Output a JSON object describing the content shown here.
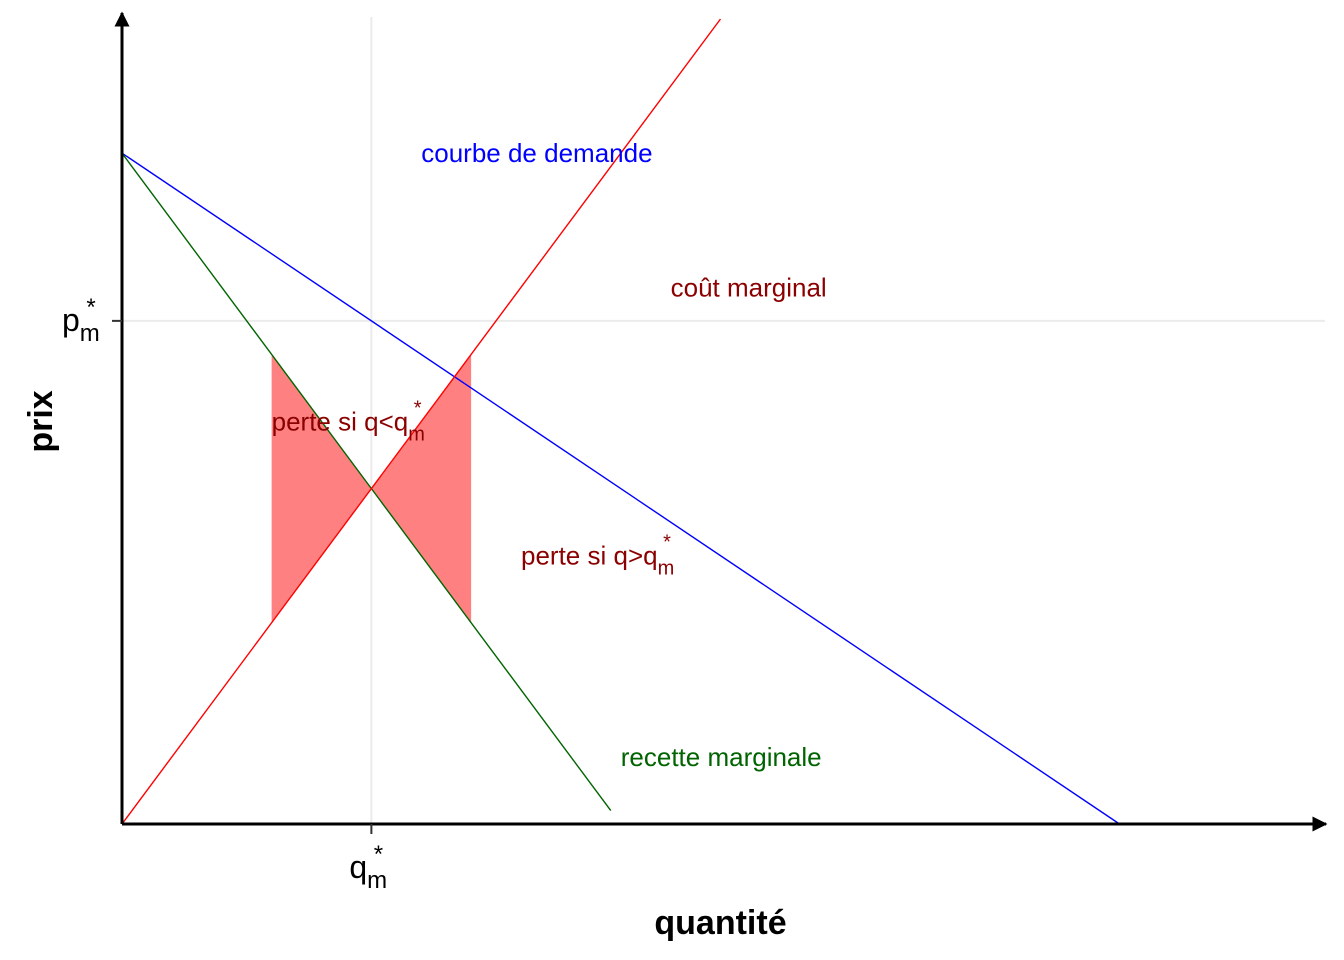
{
  "chart_data": {
    "type": "line",
    "xlabel": "quantité",
    "ylabel": "prix",
    "xlim": [
      0,
      1.2
    ],
    "ylim": [
      0,
      1.2
    ],
    "grid": true,
    "x_ticks": [
      {
        "value": 0.25,
        "base": "q",
        "sub": "m",
        "sup": "*"
      }
    ],
    "y_ticks": [
      {
        "value": 0.75,
        "base": "p",
        "sub": "m",
        "sup": "*"
      }
    ],
    "series": [
      {
        "name": "courbe de demande",
        "color": "#0000ff",
        "x": [
          0,
          1.0
        ],
        "y": [
          1.0,
          0
        ]
      },
      {
        "name": "recette marginale",
        "color": "#006400",
        "x": [
          0,
          0.49
        ],
        "y": [
          1.0,
          0.02
        ]
      },
      {
        "name": "coût marginal",
        "color": "#ff0000",
        "x": [
          0,
          0.6
        ],
        "y": [
          0,
          1.2
        ]
      }
    ],
    "shaded_regions": [
      {
        "color": "#ff8080",
        "x": [
          0.15,
          0.25
        ],
        "lower": "coût marginal",
        "upper": "recette marginale"
      },
      {
        "color": "#ff8080",
        "x": [
          0.25,
          0.35
        ],
        "lower": "recette marginale",
        "upper": "coût marginal"
      }
    ],
    "annotations": [
      {
        "id": "demand",
        "text": "courbe de demande",
        "color": "#0000ff",
        "x": 0.3,
        "y": 1.0
      },
      {
        "id": "mc",
        "text": "coût marginal",
        "color": "#8b0000",
        "x": 0.55,
        "y": 0.8
      },
      {
        "id": "mr",
        "text": "recette marginale",
        "color": "#006400",
        "x": 0.5,
        "y": 0.1
      },
      {
        "id": "loss_low",
        "text": "perte si q<q",
        "sub": "m",
        "sup": "*",
        "color": "#8b0000",
        "x": 0.15,
        "y": 0.6
      },
      {
        "id": "loss_high",
        "text": "perte si q>q",
        "sub": "m",
        "sup": "*",
        "color": "#8b0000",
        "x": 0.4,
        "y": 0.4
      }
    ]
  }
}
